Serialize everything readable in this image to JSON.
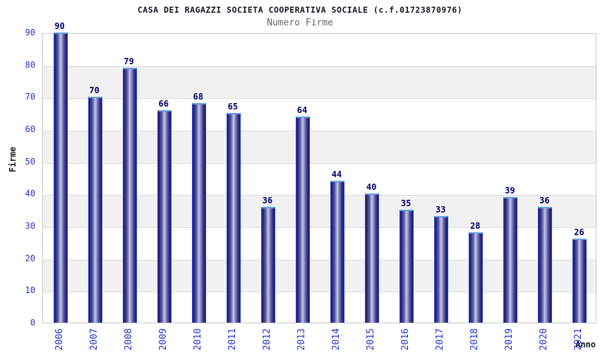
{
  "header": {
    "title": "CASA DEI RAGAZZI SOCIETA COOPERATIVA SOCIALE (c.f.01723870976)",
    "subtitle": "Numero Firme"
  },
  "chart_data": {
    "type": "bar",
    "title": "CASA DEI RAGAZZI SOCIETA COOPERATIVA SOCIALE (c.f.01723870976)",
    "subtitle": "Numero Firme",
    "xlabel": "Anno",
    "ylabel": "Firme",
    "categories": [
      "2006",
      "2007",
      "2008",
      "2009",
      "2010",
      "2011",
      "2012",
      "2013",
      "2014",
      "2015",
      "2016",
      "2017",
      "2018",
      "2019",
      "2020",
      "2021"
    ],
    "values": [
      90,
      70,
      79,
      66,
      68,
      65,
      36,
      64,
      44,
      40,
      35,
      33,
      28,
      39,
      36,
      26
    ],
    "ylim": [
      0,
      90
    ],
    "ytick_step": 10,
    "grid": "horizontal-bands",
    "legend": null,
    "bar_labels_shown": true
  },
  "colors": {
    "tick_label": "#2233cc",
    "value_label": "#000066",
    "bar_dark": "#1d1d68",
    "bar_light": "#c6c6e9",
    "bar_border": "#2b3fd0",
    "bar_top_border": "#63a0e0",
    "band_gray": "#f1f1f1",
    "gridline": "#dcdcdc",
    "title": "#15151f",
    "subtitle": "#666666"
  }
}
